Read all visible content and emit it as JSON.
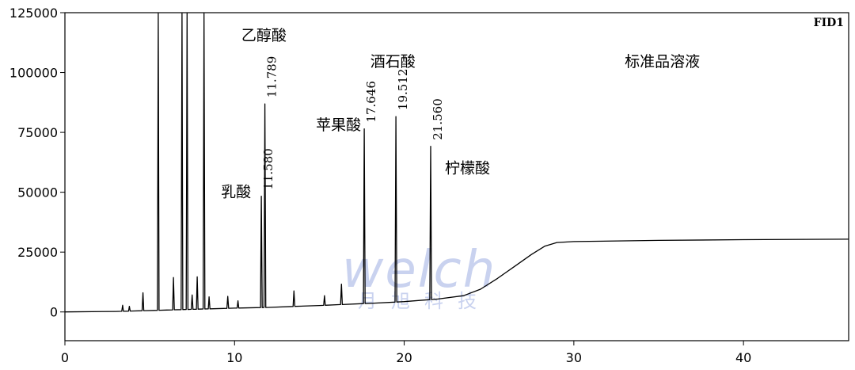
{
  "chart_data": {
    "type": "line",
    "detector_label": "FID1",
    "xlim": [
      0,
      46.2
    ],
    "ylim": [
      -12000,
      125000
    ],
    "x_ticks": [
      0,
      10,
      20,
      30,
      40
    ],
    "y_ticks": [
      0,
      25000,
      50000,
      75000,
      100000,
      125000
    ],
    "baseline": {
      "x": [
        0,
        3,
        6,
        10,
        12,
        15,
        18,
        20,
        22,
        23.5,
        24.5,
        25.5,
        26.5,
        27.5,
        28.3,
        29,
        30,
        35,
        40,
        46.2
      ],
      "y": [
        0,
        200,
        800,
        1600,
        1900,
        2700,
        3600,
        4300,
        5400,
        6800,
        9500,
        14000,
        19000,
        24000,
        27500,
        29000,
        29400,
        29900,
        30200,
        30400
      ]
    },
    "peaks": [
      {
        "rt": 3.4,
        "height": 2500,
        "label": ""
      },
      {
        "rt": 3.8,
        "height": 2000,
        "label": ""
      },
      {
        "rt": 4.6,
        "height": 7500,
        "label": ""
      },
      {
        "rt": 5.5,
        "height": 125000,
        "label": ""
      },
      {
        "rt": 6.4,
        "height": 13500,
        "label": ""
      },
      {
        "rt": 6.9,
        "height": 125000,
        "label": ""
      },
      {
        "rt": 7.2,
        "height": 125000,
        "label": ""
      },
      {
        "rt": 7.5,
        "height": 6000,
        "label": ""
      },
      {
        "rt": 7.8,
        "height": 13500,
        "label": ""
      },
      {
        "rt": 8.2,
        "height": 125000,
        "label": ""
      },
      {
        "rt": 8.5,
        "height": 5000,
        "label": ""
      },
      {
        "rt": 9.6,
        "height": 5000,
        "label": ""
      },
      {
        "rt": 10.2,
        "height": 3000,
        "label": ""
      },
      {
        "rt": 11.58,
        "height": 46500,
        "label": "11.580"
      },
      {
        "rt": 11.789,
        "height": 85000,
        "label": "11.789"
      },
      {
        "rt": 13.5,
        "height": 6500,
        "label": ""
      },
      {
        "rt": 15.3,
        "height": 4000,
        "label": ""
      },
      {
        "rt": 16.3,
        "height": 8500,
        "label": ""
      },
      {
        "rt": 17.646,
        "height": 73000,
        "label": "17.646"
      },
      {
        "rt": 19.512,
        "height": 77500,
        "label": "19.512"
      },
      {
        "rt": 21.56,
        "height": 64000,
        "label": "21.560"
      }
    ],
    "annotations": [
      {
        "text": "乙醇酸",
        "x": 10.4,
        "y": 113500
      },
      {
        "text": "酒石酸",
        "x": 18.0,
        "y": 102500
      },
      {
        "text": "苹果酸",
        "x": 14.8,
        "y": 76000
      },
      {
        "text": "乳酸",
        "x": 9.2,
        "y": 48000
      },
      {
        "text": "柠檬酸",
        "x": 22.4,
        "y": 58000
      },
      {
        "text": "标准品溶液",
        "x": 33.0,
        "y": 102500
      }
    ]
  },
  "watermark": {
    "logo_text": "welch",
    "subtitle": "月旭科技"
  }
}
